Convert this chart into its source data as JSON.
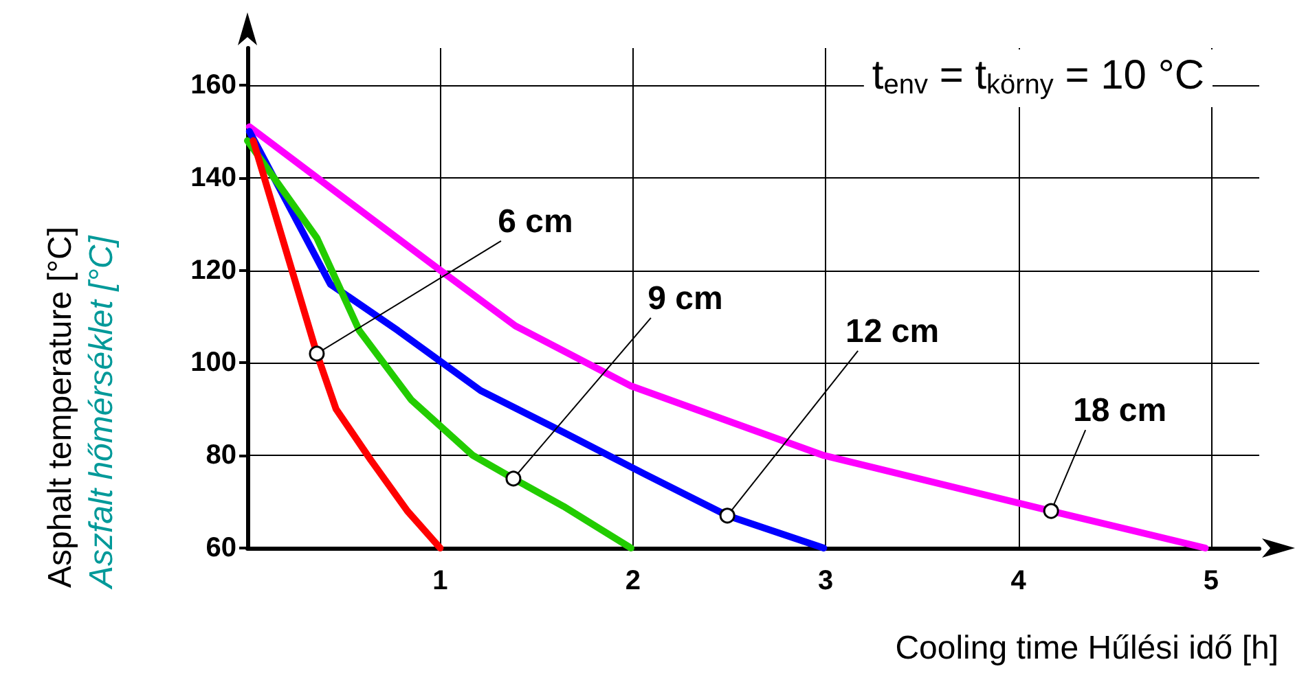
{
  "chart_data": {
    "type": "line",
    "xlabel": "Cooling time Hűlési idő [h]",
    "ylabel": "Asphalt temperature [°C]\nAszfalt hőmérséklet [°C]",
    "xlim": [
      0,
      5.25
    ],
    "xticks": [
      1,
      2,
      3,
      4,
      5
    ],
    "ylim": [
      60,
      168
    ],
    "yticks": [
      60,
      80,
      100,
      120,
      140,
      160
    ],
    "grid": true,
    "line_style": "solid",
    "series": [
      {
        "color": "#ff0000",
        "x": [
          0.03,
          0.36,
          0.46,
          0.64,
          0.83,
          1.0
        ],
        "values": [
          148,
          102,
          90,
          79,
          68,
          60
        ]
      },
      {
        "color": "#22cc00",
        "x": [
          0.0,
          0.36,
          0.58,
          0.85,
          1.17,
          1.38,
          1.64,
          1.99
        ],
        "values": [
          148,
          127,
          107,
          92,
          80,
          75,
          69,
          60
        ]
      },
      {
        "color": "#0000ff",
        "x": [
          0.01,
          0.43,
          0.78,
          1.21,
          1.64,
          2.06,
          2.49,
          2.99
        ],
        "values": [
          150,
          117,
          107,
          94,
          85,
          76,
          67,
          60
        ]
      },
      {
        "color": "#ff00ff",
        "x": [
          0.01,
          1.0,
          1.39,
          1.99,
          2.99,
          4.17,
          4.97
        ],
        "values": [
          151,
          120,
          108,
          95,
          80,
          68,
          60
        ]
      }
    ],
    "annotations": [
      {
        "text": "6 cm",
        "x": 0.36,
        "y": 102
      },
      {
        "text": "9 cm",
        "x": 1.38,
        "y": 75
      },
      {
        "text": "12 cm",
        "x": 2.49,
        "y": 67
      },
      {
        "text": "18 cm",
        "x": 4.17,
        "y": 68
      },
      "t$_{env}$ = t$_{körny}$ = 10 °C"
    ]
  }
}
